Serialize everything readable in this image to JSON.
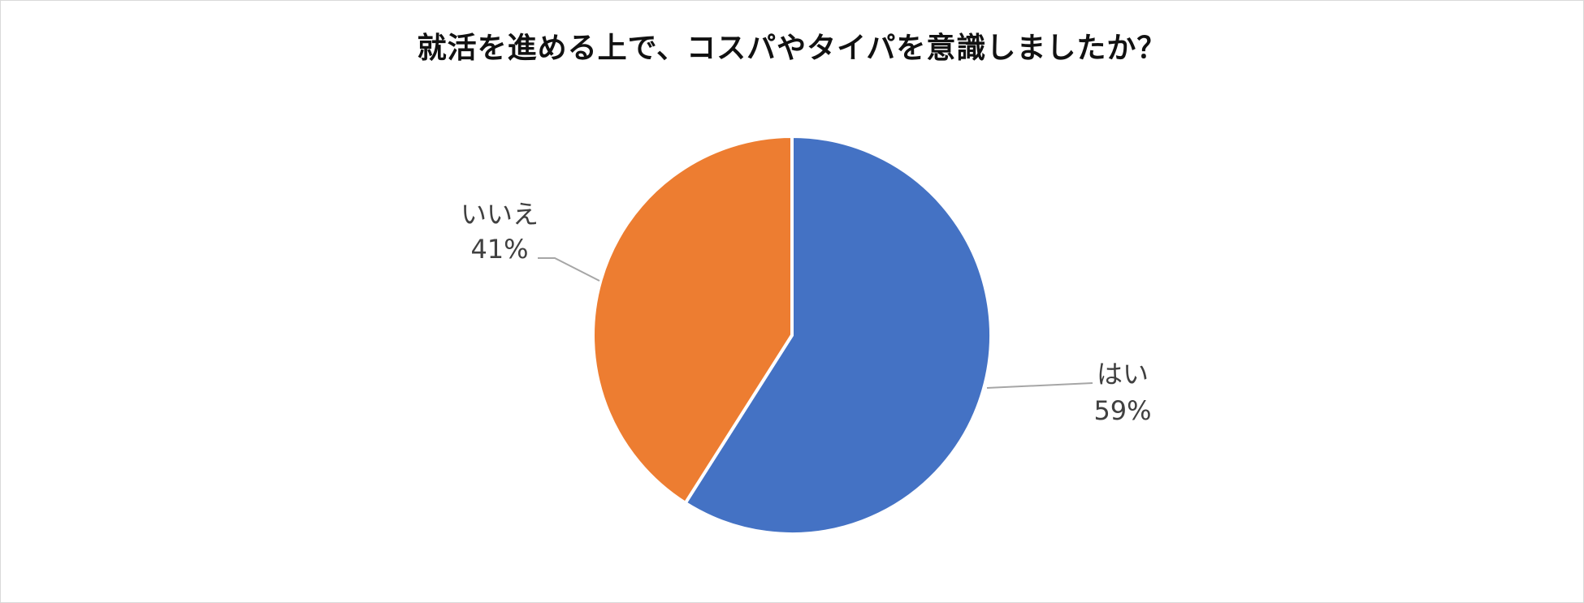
{
  "chart_data": {
    "type": "pie",
    "title": "就活を進める上で、コスパやタイパを意識しましたか？",
    "slices": [
      {
        "label": "はい",
        "value": 59,
        "display": "59%",
        "color": "#4472C4"
      },
      {
        "label": "いいえ",
        "value": 41,
        "display": "41%",
        "color": "#ED7D31"
      }
    ],
    "start": "12 o'clock, clockwise",
    "legend": "none",
    "data_labels": "outside with leader lines"
  }
}
